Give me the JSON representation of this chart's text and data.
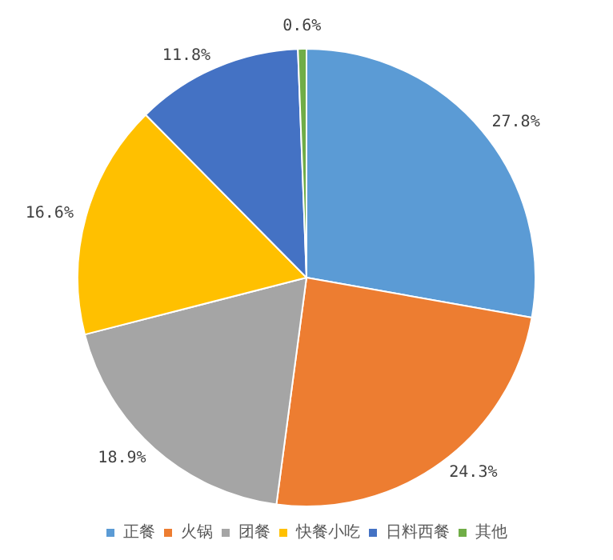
{
  "chart_data": {
    "type": "pie",
    "categories": [
      "正餐",
      "火锅",
      "团餐",
      "快餐小吃",
      "日料西餐",
      "其他"
    ],
    "values": [
      27.8,
      24.3,
      18.9,
      16.6,
      11.8,
      0.6
    ],
    "colors": [
      "#5b9bd5",
      "#ed7d31",
      "#a5a5a5",
      "#ffc000",
      "#4472c4",
      "#70ad47"
    ],
    "value_labels": [
      "27.8%",
      "24.3%",
      "18.9%",
      "16.6%",
      "11.8%",
      "0.6%"
    ],
    "legend": "bottom"
  }
}
